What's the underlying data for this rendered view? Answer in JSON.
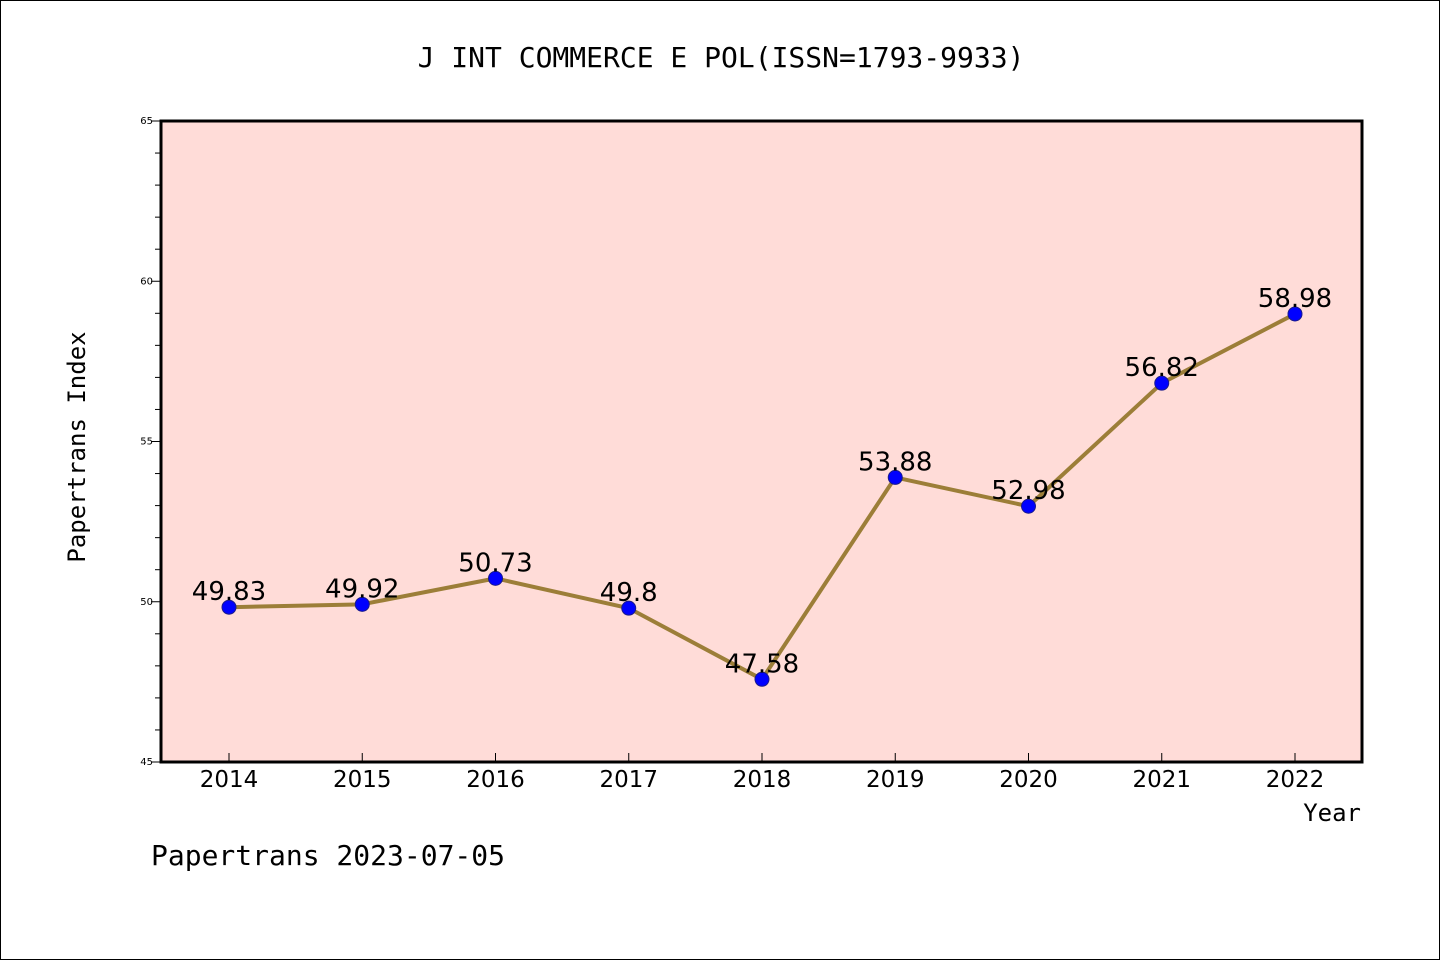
{
  "footer": "Papertrans 2023-07-05",
  "colors": {
    "plot_background": "#ffdcd8",
    "line": "#9c7e38",
    "marker_fill": "#0000ff",
    "marker_stroke": "#1a1a8c",
    "axis": "#000000"
  },
  "chart_data": {
    "type": "line",
    "title": "J INT COMMERCE E POL(ISSN=1793-9933)",
    "xlabel": "Year",
    "ylabel": "Papertrans Index",
    "categories": [
      "2014",
      "2015",
      "2016",
      "2017",
      "2018",
      "2019",
      "2020",
      "2021",
      "2022"
    ],
    "values": [
      49.83,
      49.92,
      50.73,
      49.8,
      47.58,
      53.88,
      52.98,
      56.82,
      58.98
    ],
    "data_labels": [
      "49.83",
      "49.92",
      "50.73",
      "49.8",
      "47.58",
      "53.88",
      "52.98",
      "56.82",
      "58.98"
    ],
    "ylim": [
      45,
      65
    ],
    "yticks": [
      45,
      50,
      55,
      60,
      65
    ],
    "ytick_labels": [
      "45",
      "50",
      "55",
      "60",
      "65"
    ],
    "y_minor_step": 1,
    "grid": false,
    "legend": "none"
  }
}
